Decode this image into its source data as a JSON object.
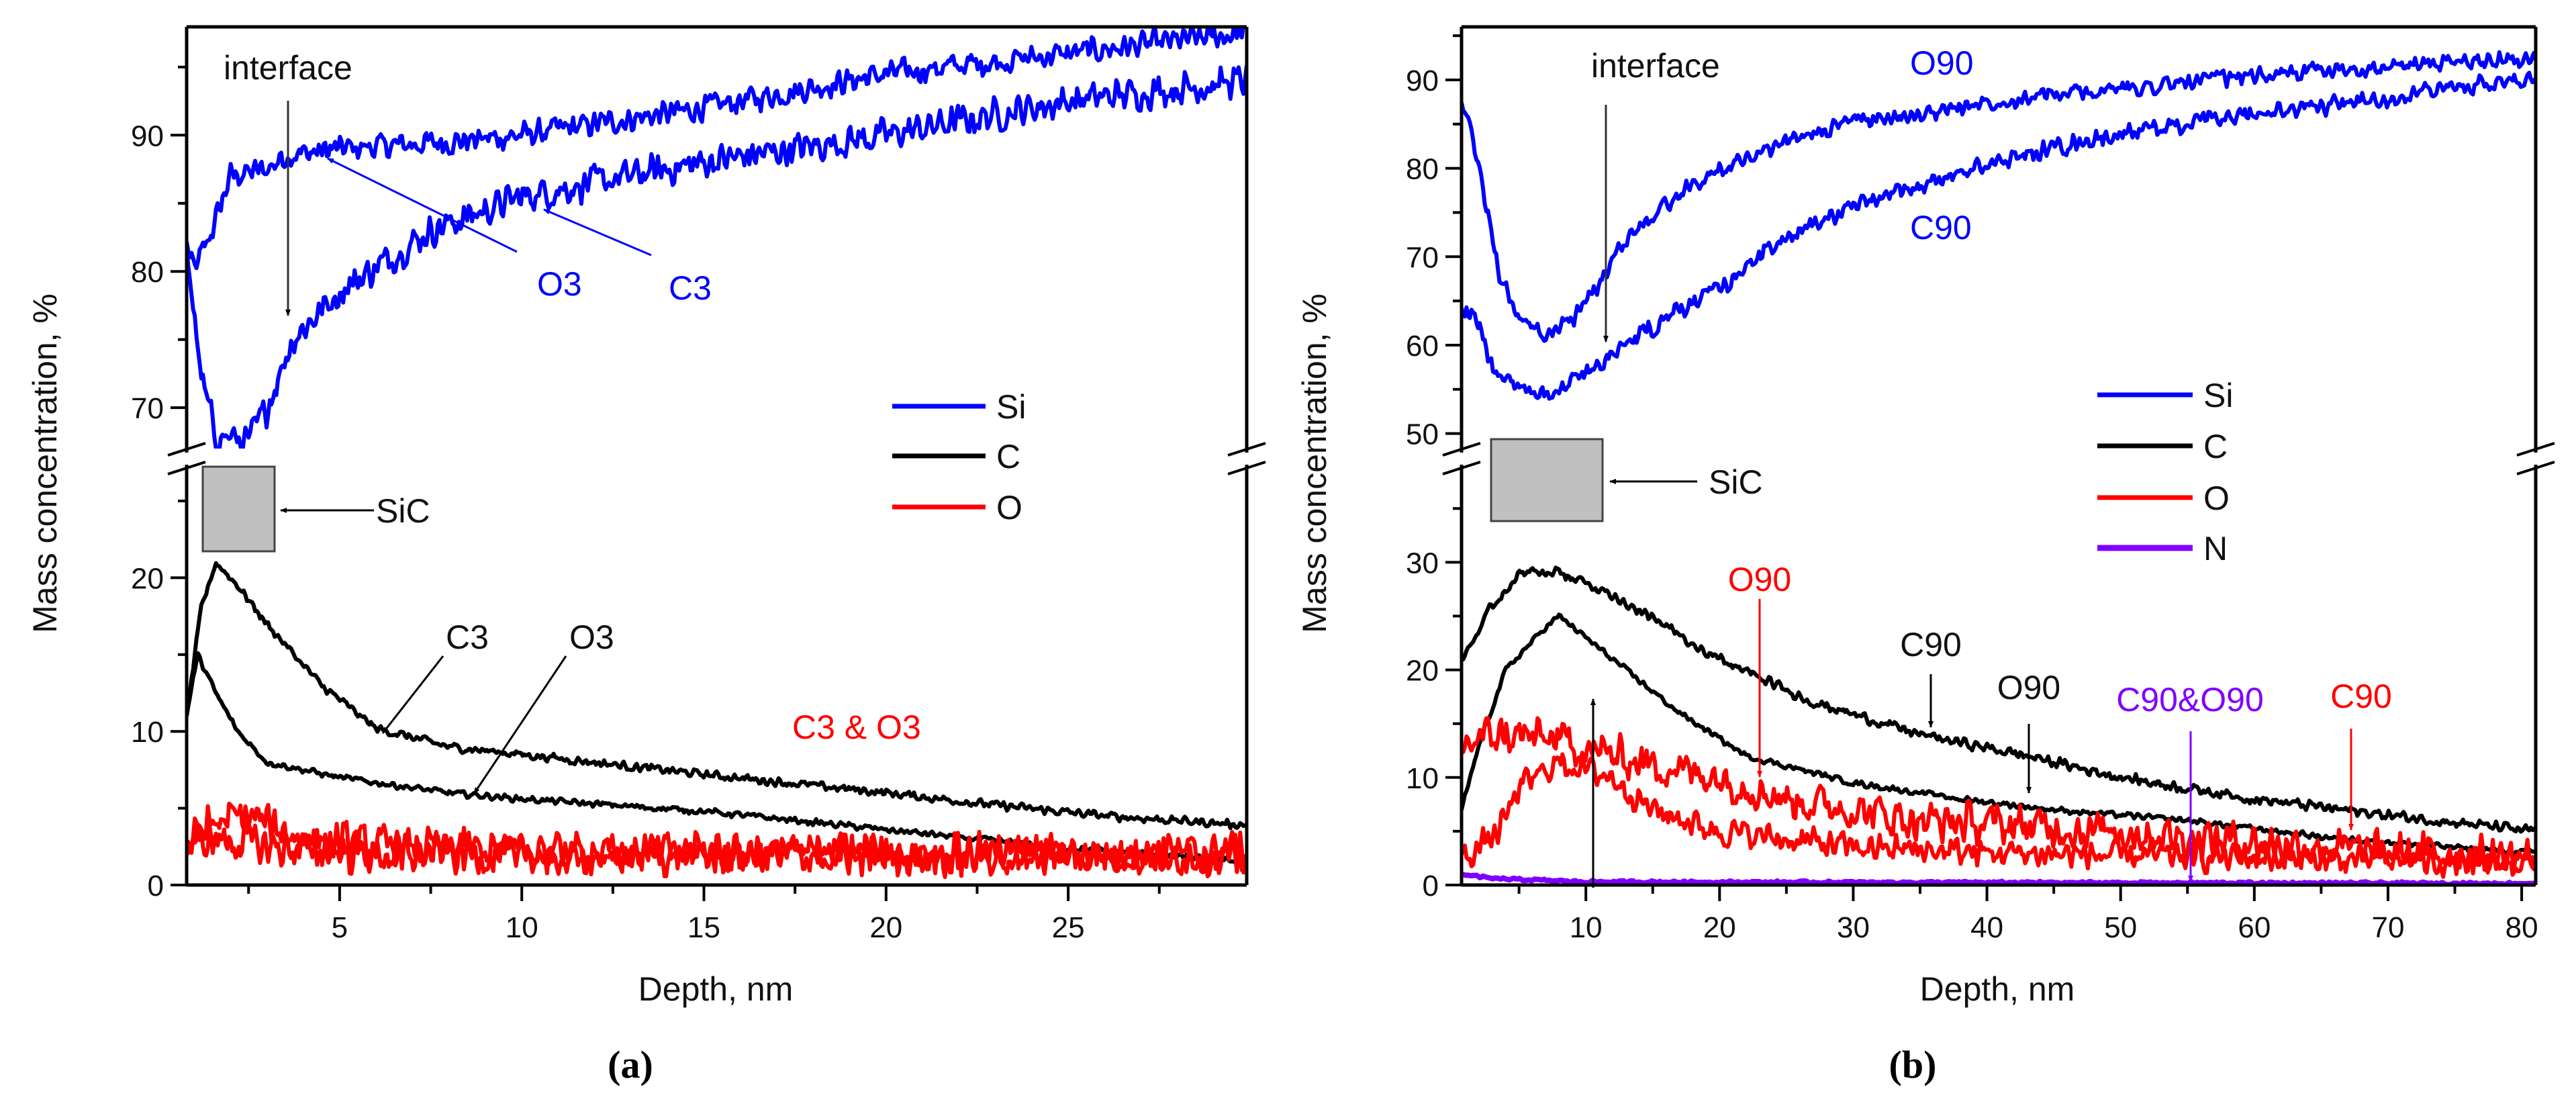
{
  "chart_data": [
    {
      "type": "line",
      "panel_label": "(a)",
      "xlabel": "Depth, nm",
      "ylabel": "Mass concentration, %",
      "xlim": [
        0.8,
        29.9
      ],
      "y_axis_break": true,
      "ylim_upper": [
        67.0,
        97.95
      ],
      "ylim_lower": [
        0,
        27.1
      ],
      "xticks": [
        5,
        10,
        15,
        20,
        25
      ],
      "xminor_step": 2.5,
      "yticks_upper": [
        70,
        80,
        90
      ],
      "yticks_lower": [
        0,
        10,
        20
      ],
      "yminor_step": 5,
      "grid": false,
      "legend_placement": "right-middle",
      "legend": [
        {
          "name": "Si",
          "color": "#0000ff"
        },
        {
          "name": "C",
          "color": "#000000"
        },
        {
          "name": "O",
          "color": "#ff0000"
        }
      ],
      "series": [
        {
          "name": "Si O3",
          "segment": "upper",
          "color": "#0000ff",
          "noise": 0.7,
          "points": [
            [
              0.8,
              82
            ],
            [
              1.0,
              80
            ],
            [
              1.5,
              83
            ],
            [
              2,
              87
            ],
            [
              3,
              87.5
            ],
            [
              3.5,
              88.5
            ],
            [
              5,
              89
            ],
            [
              8,
              89.5
            ],
            [
              10,
              90
            ],
            [
              15,
              92
            ],
            [
              20,
              94.5
            ],
            [
              25,
              96
            ],
            [
              29.9,
              97.5
            ]
          ]
        },
        {
          "name": "Si C3",
          "segment": "upper",
          "color": "#0000ff",
          "noise": 0.9,
          "points": [
            [
              0.8,
              82
            ],
            [
              1.2,
              72
            ],
            [
              1.6,
              68
            ],
            [
              2.5,
              67.5
            ],
            [
              3,
              70
            ],
            [
              3.7,
              75
            ],
            [
              5,
              78.5
            ],
            [
              7.5,
              83
            ],
            [
              10,
              85.5
            ],
            [
              15,
              88
            ],
            [
              20,
              90
            ],
            [
              25,
              92.5
            ],
            [
              29.9,
              94
            ]
          ]
        },
        {
          "name": "C C3",
          "segment": "lower",
          "color": "#000000",
          "noise": 0.2,
          "points": [
            [
              0.8,
              11
            ],
            [
              1.2,
              18
            ],
            [
              1.6,
              21
            ],
            [
              2.2,
              19.5
            ],
            [
              3,
              17
            ],
            [
              4.5,
              13
            ],
            [
              6,
              10.2
            ],
            [
              8,
              9
            ],
            [
              10,
              8.5
            ],
            [
              15,
              7.2
            ],
            [
              20,
              6
            ],
            [
              23,
              5.2
            ],
            [
              26,
              4.5
            ],
            [
              29.9,
              3.9
            ]
          ]
        },
        {
          "name": "C O3",
          "segment": "lower",
          "color": "#000000",
          "noise": 0.15,
          "points": [
            [
              0.8,
              11
            ],
            [
              1.1,
              15
            ],
            [
              1.6,
              12.5
            ],
            [
              2.2,
              10
            ],
            [
              3,
              8
            ],
            [
              5,
              7
            ],
            [
              8,
              6
            ],
            [
              10,
              5.6
            ],
            [
              15,
              4.8
            ],
            [
              20,
              3.6
            ],
            [
              25,
              2.4
            ],
            [
              29.9,
              1.5
            ]
          ]
        },
        {
          "name": "O O3",
          "segment": "lower",
          "color": "#ff0000",
          "noise": 1.0,
          "points": [
            [
              0.8,
              2.5
            ],
            [
              1.5,
              4
            ],
            [
              2.5,
              4.5
            ],
            [
              4,
              3
            ],
            [
              6,
              2.5
            ],
            [
              10,
              2.2
            ],
            [
              20,
              2
            ],
            [
              29.9,
              2
            ]
          ]
        },
        {
          "name": "O C3",
          "segment": "lower",
          "color": "#ff0000",
          "noise": 1.0,
          "points": [
            [
              0.8,
              2.5
            ],
            [
              1.5,
              3
            ],
            [
              3,
              2.5
            ],
            [
              6,
              2
            ],
            [
              10,
              2
            ],
            [
              20,
              2
            ],
            [
              29.9,
              2
            ]
          ]
        }
      ],
      "annotations": {
        "interface": "interface",
        "si_o3": "O3",
        "si_c3": "C3",
        "sic": "SiC",
        "c_c3": "C3",
        "c_o3": "O3",
        "o_both": "C3 & O3"
      }
    },
    {
      "type": "line",
      "panel_label": "(b)",
      "xlabel": "Depth, nm",
      "ylabel": "Mass concentration, %",
      "xlim": [
        0.7,
        81.05
      ],
      "y_axis_break": true,
      "ylim_upper": [
        48.3,
        96.0
      ],
      "ylim_lower": [
        0,
        38.7
      ],
      "xticks": [
        10,
        20,
        30,
        40,
        50,
        60,
        70,
        80
      ],
      "xminor_step": 5,
      "yticks_upper": [
        50,
        60,
        70,
        80,
        90
      ],
      "yticks_lower": [
        0,
        10,
        20,
        30
      ],
      "yminor_step": 5,
      "grid": false,
      "legend_placement": "right-middle",
      "legend": [
        {
          "name": "Si",
          "color": "#0000ff"
        },
        {
          "name": "C",
          "color": "#000000"
        },
        {
          "name": "O",
          "color": "#ff0000"
        },
        {
          "name": "N",
          "color": "#7f00ff"
        }
      ],
      "series": [
        {
          "name": "Si O90",
          "segment": "upper",
          "color": "#0000ff",
          "noise": 0.7,
          "points": [
            [
              0.7,
              88
            ],
            [
              2,
              80
            ],
            [
              3.5,
              68
            ],
            [
              5,
              63
            ],
            [
              7,
              61
            ],
            [
              9,
              63
            ],
            [
              11,
              67
            ],
            [
              13,
              72
            ],
            [
              16,
              76
            ],
            [
              20,
              80
            ],
            [
              25,
              83
            ],
            [
              30,
              85.5
            ],
            [
              35,
              86
            ],
            [
              40,
              87.5
            ],
            [
              50,
              89
            ],
            [
              60,
              90.5
            ],
            [
              70,
              91.5
            ],
            [
              81,
              92.5
            ]
          ]
        },
        {
          "name": "Si C90",
          "segment": "upper",
          "color": "#0000ff",
          "noise": 0.8,
          "points": [
            [
              0.7,
              64
            ],
            [
              2,
              62
            ],
            [
              3,
              57
            ],
            [
              5,
              55
            ],
            [
              8,
              55
            ],
            [
              10,
              57
            ],
            [
              12,
              59
            ],
            [
              15,
              62
            ],
            [
              20,
              66.5
            ],
            [
              23,
              70
            ],
            [
              27,
              74
            ],
            [
              33,
              77
            ],
            [
              40,
              80.5
            ],
            [
              50,
              84
            ],
            [
              60,
              86
            ],
            [
              70,
              88
            ],
            [
              81,
              90.5
            ]
          ]
        },
        {
          "name": "C C90",
          "segment": "lower",
          "color": "#000000",
          "noise": 0.35,
          "points": [
            [
              0.7,
              21
            ],
            [
              3,
              26
            ],
            [
              5,
              29
            ],
            [
              8,
              29
            ],
            [
              12,
              27
            ],
            [
              16,
              24
            ],
            [
              20,
              21
            ],
            [
              27,
              17
            ],
            [
              35,
              14
            ],
            [
              43,
              12
            ],
            [
              50,
              10
            ],
            [
              60,
              8
            ],
            [
              70,
              6.5
            ],
            [
              81,
              5
            ]
          ]
        },
        {
          "name": "C O90",
          "segment": "lower",
          "color": "#000000",
          "noise": 0.2,
          "points": [
            [
              0.7,
              7
            ],
            [
              2,
              13
            ],
            [
              4,
              20
            ],
            [
              7,
              24
            ],
            [
              8,
              25
            ],
            [
              10,
              23
            ],
            [
              12,
              21
            ],
            [
              17,
              16
            ],
            [
              22,
              12
            ],
            [
              30,
              9.5
            ],
            [
              38,
              8
            ],
            [
              45,
              7
            ],
            [
              55,
              6
            ],
            [
              65,
              4.5
            ],
            [
              75,
              3.5
            ],
            [
              81,
              3
            ]
          ]
        },
        {
          "name": "O O90",
          "segment": "lower",
          "color": "#ff0000",
          "noise": 1.4,
          "points": [
            [
              0.7,
              13
            ],
            [
              3,
              14
            ],
            [
              8,
              13.5
            ],
            [
              12,
              12
            ],
            [
              20,
              10
            ],
            [
              25,
              8
            ],
            [
              35,
              6
            ],
            [
              50,
              5
            ],
            [
              60,
              4
            ],
            [
              70,
              3
            ],
            [
              81,
              2.5
            ]
          ]
        },
        {
          "name": "O C90",
          "segment": "lower",
          "color": "#ff0000",
          "noise": 1.0,
          "points": [
            [
              0.7,
              2.5
            ],
            [
              2,
              3.5
            ],
            [
              3.5,
              5
            ],
            [
              5,
              9
            ],
            [
              8,
              11.5
            ],
            [
              12,
              10
            ],
            [
              15,
              7
            ],
            [
              20,
              5
            ],
            [
              30,
              3.5
            ],
            [
              40,
              3
            ],
            [
              60,
              2.5
            ],
            [
              81,
              2
            ]
          ]
        },
        {
          "name": "N",
          "segment": "lower",
          "color": "#7f00ff",
          "noise": 0.08,
          "points": [
            [
              0.7,
              1
            ],
            [
              3,
              0.6
            ],
            [
              10,
              0.3
            ],
            [
              30,
              0.25
            ],
            [
              81,
              0.15
            ]
          ]
        }
      ],
      "annotations": {
        "interface": "interface",
        "si_o90": "O90",
        "si_c90": "C90",
        "sic": "SiC",
        "o_o90": "O90",
        "c_c90": "C90",
        "c_o90": "O90",
        "n_both": "C90&O90",
        "o_c90": "C90"
      }
    }
  ]
}
